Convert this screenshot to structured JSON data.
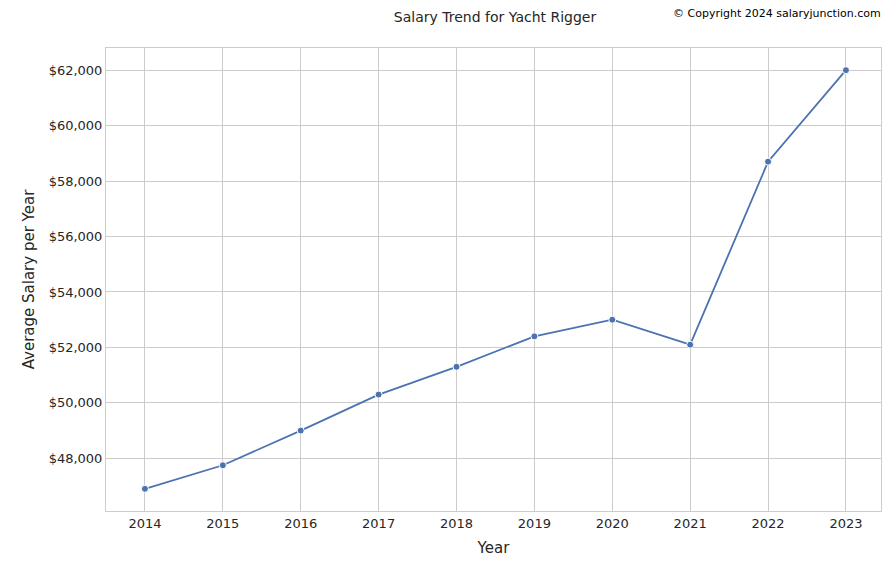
{
  "chart_data": {
    "type": "line",
    "title": "Salary Trend for Yacht Rigger",
    "annotations": [
      "© Copyright 2024 salaryjunction.com"
    ],
    "x_label": "Year",
    "y_label": "Average Salary per Year",
    "x": [
      2014,
      2015,
      2016,
      2017,
      2018,
      2019,
      2020,
      2021,
      2022,
      2023
    ],
    "values": [
      46900,
      47750,
      49000,
      50300,
      51300,
      52400,
      53000,
      52100,
      58700,
      62000
    ],
    "color": "#4c72b0",
    "marker": "circle",
    "line_style": "solid",
    "grid": true,
    "xlim": [
      2013.5,
      2023.45
    ],
    "xticks": [
      2014,
      2015,
      2016,
      2017,
      2018,
      2019,
      2020,
      2021,
      2022,
      2023
    ],
    "ylim": [
      46100,
      62800
    ],
    "yticks": [
      {
        "value": 48000,
        "label": "$48,000"
      },
      {
        "value": 50000,
        "label": "$50,000"
      },
      {
        "value": 52000,
        "label": "$52,000"
      },
      {
        "value": 54000,
        "label": "$54,000"
      },
      {
        "value": 56000,
        "label": "$56,000"
      },
      {
        "value": 58000,
        "label": "$58,000"
      },
      {
        "value": 60000,
        "label": "$60,000"
      },
      {
        "value": 62000,
        "label": "$62,000"
      }
    ]
  }
}
